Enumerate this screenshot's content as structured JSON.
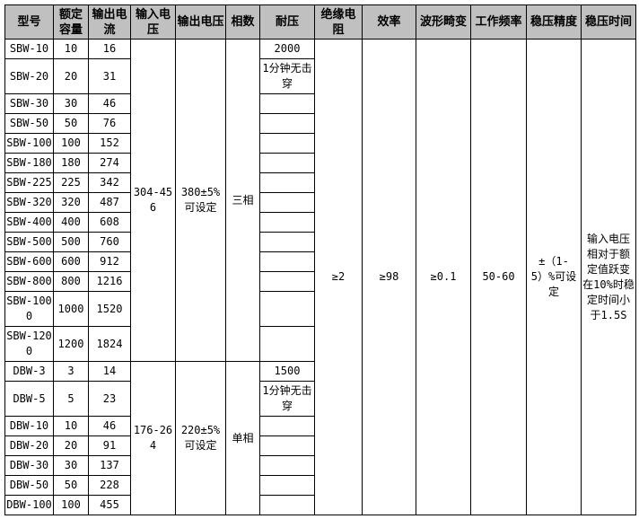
{
  "headers": [
    "型号",
    "额定容量",
    "输出电流",
    "输入电压",
    "输出电压",
    "相数",
    "耐压",
    "绝缘电阻",
    "效率",
    "波形畸变",
    "工作频率",
    "稳压精度",
    "稳压时间"
  ],
  "groups": [
    {
      "input_voltage": "304-456",
      "output_voltage": "380±5%可设定",
      "phase": "三相",
      "rows": [
        [
          "SBW-10",
          "10",
          "16",
          "2000"
        ],
        [
          "SBW-20",
          "20",
          "31",
          "1分钟无击穿"
        ],
        [
          "SBW-30",
          "30",
          "46",
          ""
        ],
        [
          "SBW-50",
          "50",
          "76",
          ""
        ],
        [
          "SBW-100",
          "100",
          "152",
          ""
        ],
        [
          "SBW-180",
          "180",
          "274",
          ""
        ],
        [
          "SBW-225",
          "225",
          "342",
          ""
        ],
        [
          "SBW-320",
          "320",
          "487",
          ""
        ],
        [
          "SBW-400",
          "400",
          "608",
          ""
        ],
        [
          "SBW-500",
          "500",
          "760",
          ""
        ],
        [
          "SBW-600",
          "600",
          "912",
          ""
        ],
        [
          "SBW-800",
          "800",
          "1216",
          ""
        ],
        [
          "SBW-1000",
          "1000",
          "1520",
          ""
        ],
        [
          "SBW-1200",
          "1200",
          "1824",
          ""
        ]
      ]
    },
    {
      "input_voltage": "176-264",
      "output_voltage": "220±5%可设定",
      "phase": "单相",
      "rows": [
        [
          "DBW-3",
          "3",
          "14",
          "1500"
        ],
        [
          "DBW-5",
          "5",
          "23",
          "1分钟无击穿"
        ],
        [
          "DBW-10",
          "10",
          "46",
          ""
        ],
        [
          "DBW-20",
          "20",
          "91",
          ""
        ],
        [
          "DBW-30",
          "30",
          "137",
          ""
        ],
        [
          "DBW-50",
          "50",
          "228",
          ""
        ],
        [
          "DBW-100",
          "100",
          "455",
          ""
        ]
      ]
    }
  ],
  "shared": {
    "insulation": "≥2",
    "efficiency": "≥98",
    "distortion": "≥0.1",
    "frequency": "50-60",
    "accuracy": "±（1-5）%可设定",
    "response_time": "输入电压相对于额定值跃变在10%时稳定时间小于1.5S"
  }
}
